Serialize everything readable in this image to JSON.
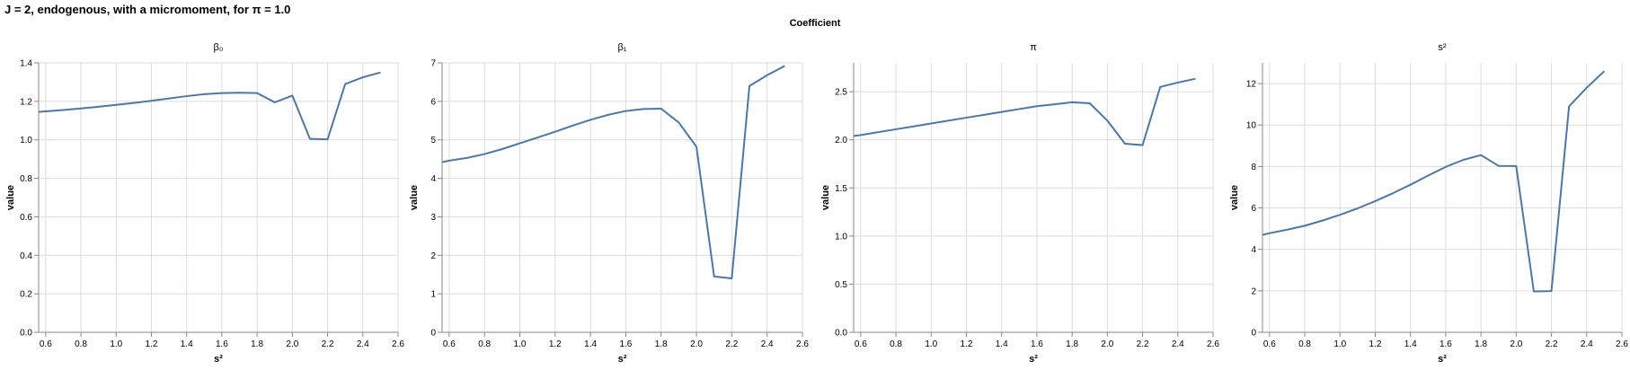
{
  "title": "J = 2, endogenous, with a micromoment,  for π = 1.0",
  "facet_header": "Coefficient",
  "chart_data": [
    {
      "type": "line",
      "panel_title": "β₀",
      "xlabel": "s²",
      "ylabel": "value",
      "xlim": [
        0.56,
        2.6
      ],
      "ylim": [
        0,
        1.4
      ],
      "xticks": [
        "0.6",
        "0.8",
        "1.0",
        "1.2",
        "1.4",
        "1.6",
        "1.8",
        "2.0",
        "2.2",
        "2.4",
        "2.6"
      ],
      "yticks": [
        "0.0",
        "0.2",
        "0.4",
        "0.6",
        "0.8",
        "1.0",
        "1.2",
        "1.4"
      ],
      "grid": true,
      "color": "#4c78a8",
      "x": [
        0.56,
        0.6,
        0.7,
        0.8,
        0.9,
        1.0,
        1.1,
        1.2,
        1.3,
        1.4,
        1.5,
        1.6,
        1.7,
        1.8,
        1.9,
        2.0,
        2.1,
        2.2,
        2.3,
        2.4,
        2.5
      ],
      "y": [
        1.145,
        1.148,
        1.155,
        1.163,
        1.172,
        1.182,
        1.192,
        1.203,
        1.215,
        1.227,
        1.237,
        1.243,
        1.245,
        1.243,
        1.195,
        1.23,
        1.005,
        1.003,
        1.29,
        1.325,
        1.35
      ]
    },
    {
      "type": "line",
      "panel_title": "β₁",
      "xlabel": "s²",
      "ylabel": "value",
      "xlim": [
        0.56,
        2.6
      ],
      "ylim": [
        0,
        7
      ],
      "xticks": [
        "0.6",
        "0.8",
        "1.0",
        "1.2",
        "1.4",
        "1.6",
        "1.8",
        "2.0",
        "2.2",
        "2.4",
        "2.6"
      ],
      "yticks": [
        "0",
        "1",
        "2",
        "3",
        "4",
        "5",
        "6",
        "7"
      ],
      "grid": true,
      "color": "#4c78a8",
      "x": [
        0.56,
        0.6,
        0.7,
        0.8,
        0.9,
        1.0,
        1.1,
        1.2,
        1.3,
        1.4,
        1.5,
        1.6,
        1.7,
        1.8,
        1.9,
        2.0,
        2.1,
        2.2,
        2.3,
        2.4,
        2.5
      ],
      "y": [
        4.42,
        4.46,
        4.53,
        4.63,
        4.76,
        4.91,
        5.06,
        5.21,
        5.37,
        5.52,
        5.65,
        5.75,
        5.8,
        5.81,
        5.45,
        4.82,
        1.45,
        1.4,
        6.4,
        6.68,
        6.92
      ]
    },
    {
      "type": "line",
      "panel_title": "π",
      "xlabel": "s²",
      "ylabel": "value",
      "xlim": [
        0.56,
        2.6
      ],
      "ylim": [
        0,
        2.8
      ],
      "xticks": [
        "0.6",
        "0.8",
        "1.0",
        "1.2",
        "1.4",
        "1.6",
        "1.8",
        "2.0",
        "2.2",
        "2.4",
        "2.6"
      ],
      "yticks": [
        "0.0",
        "0.5",
        "1.0",
        "1.5",
        "2.0",
        "2.5"
      ],
      "grid": true,
      "color": "#4c78a8",
      "x": [
        0.56,
        0.6,
        0.7,
        0.8,
        0.9,
        1.0,
        1.1,
        1.2,
        1.3,
        1.4,
        1.5,
        1.6,
        1.7,
        1.8,
        1.9,
        2.0,
        2.1,
        2.2,
        2.3,
        2.4,
        2.5
      ],
      "y": [
        2.04,
        2.05,
        2.08,
        2.11,
        2.14,
        2.17,
        2.2,
        2.23,
        2.26,
        2.29,
        2.32,
        2.35,
        2.37,
        2.39,
        2.38,
        2.2,
        1.96,
        1.945,
        2.55,
        2.595,
        2.635
      ]
    },
    {
      "type": "line",
      "panel_title": "s²",
      "xlabel": "s²",
      "ylabel": "value",
      "xlim": [
        0.56,
        2.6
      ],
      "ylim": [
        0,
        13
      ],
      "xticks": [
        "0.6",
        "0.8",
        "1.0",
        "1.2",
        "1.4",
        "1.6",
        "1.8",
        "2.0",
        "2.2",
        "2.4",
        "2.6"
      ],
      "yticks": [
        "0",
        "2",
        "4",
        "6",
        "8",
        "10",
        "12"
      ],
      "grid": true,
      "color": "#4c78a8",
      "x": [
        0.56,
        0.6,
        0.7,
        0.8,
        0.9,
        1.0,
        1.1,
        1.2,
        1.3,
        1.4,
        1.5,
        1.6,
        1.7,
        1.8,
        1.9,
        2.0,
        2.1,
        2.2,
        2.3,
        2.4,
        2.5
      ],
      "y": [
        4.7,
        4.78,
        4.95,
        5.14,
        5.39,
        5.67,
        5.98,
        6.33,
        6.71,
        7.12,
        7.56,
        7.98,
        8.32,
        8.55,
        8.03,
        8.02,
        1.97,
        1.99,
        10.9,
        11.8,
        12.6
      ]
    }
  ]
}
